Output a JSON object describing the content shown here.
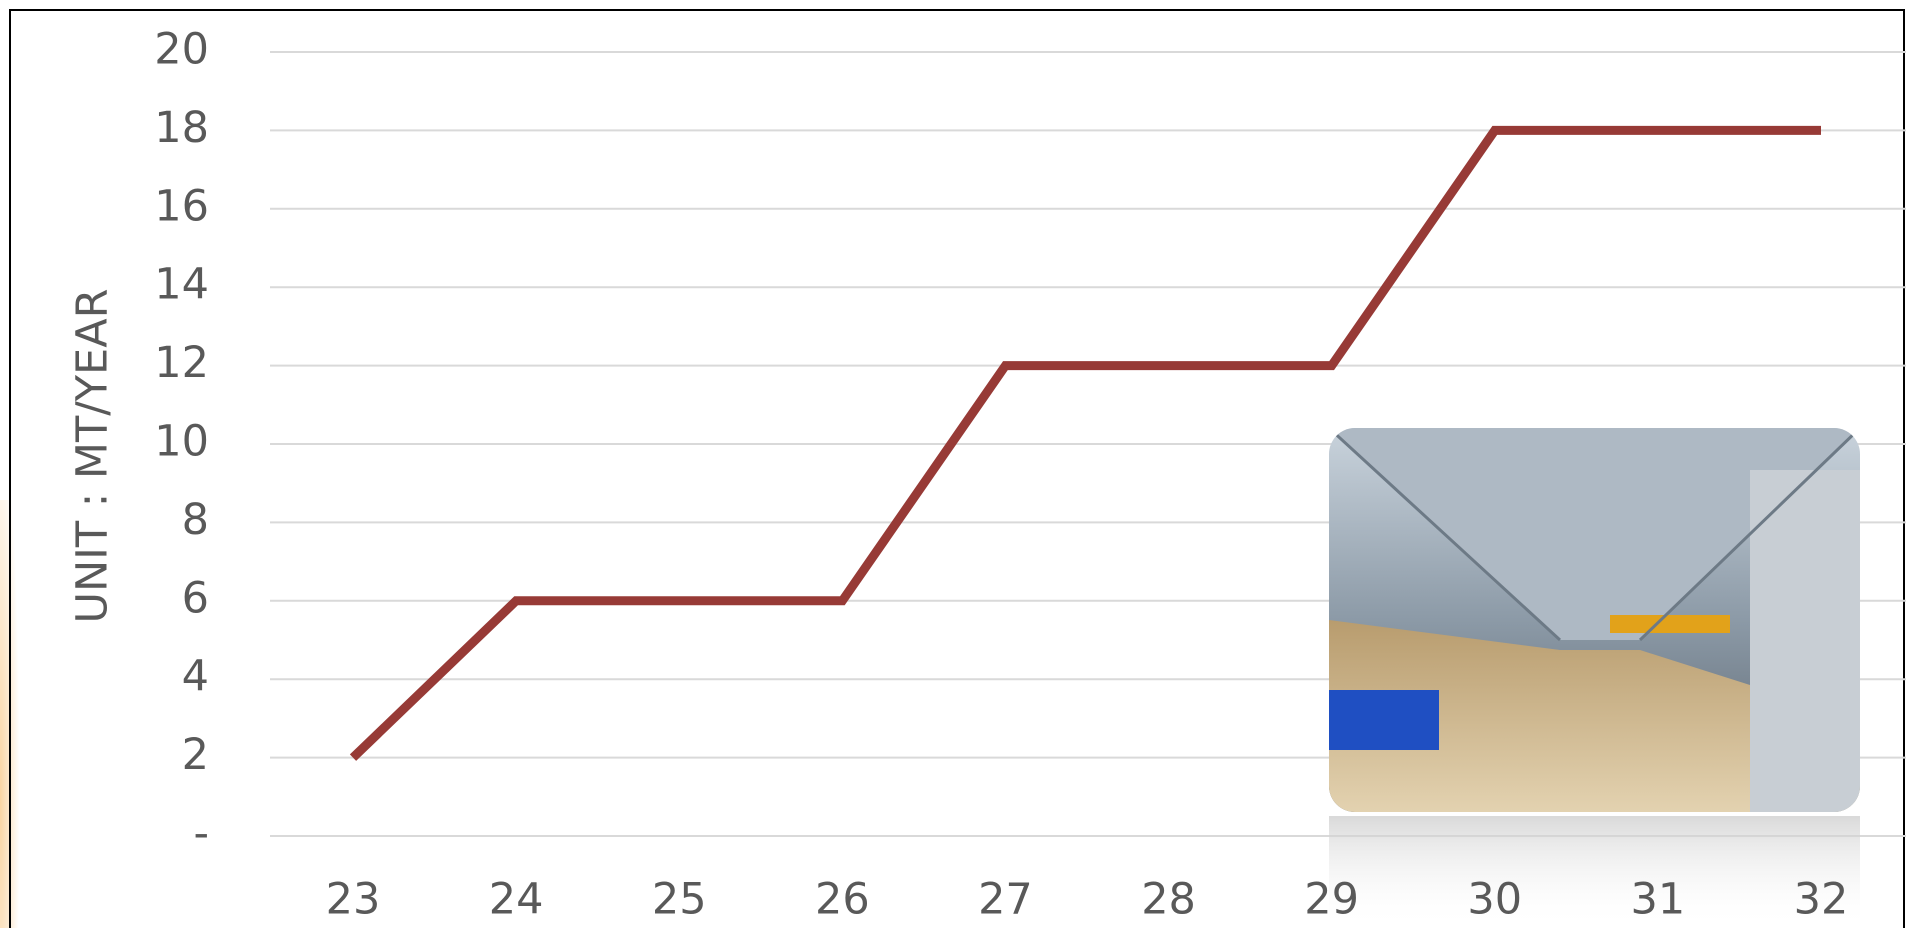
{
  "chart_data": {
    "type": "line",
    "y_label": "UNIT : MT/YEAR",
    "categories": [
      "23",
      "24",
      "25",
      "26",
      "27",
      "28",
      "29",
      "30",
      "31",
      "32"
    ],
    "series": [
      {
        "color": "#973a36",
        "values": [
          2,
          6,
          6,
          6,
          12,
          12,
          12,
          18,
          18,
          18
        ]
      }
    ],
    "ylim": [
      0,
      20
    ],
    "yticks": [
      {
        "value": 0,
        "label": "-"
      },
      2,
      4,
      6,
      8,
      10,
      12,
      14,
      16,
      18,
      20
    ],
    "grid": true
  }
}
